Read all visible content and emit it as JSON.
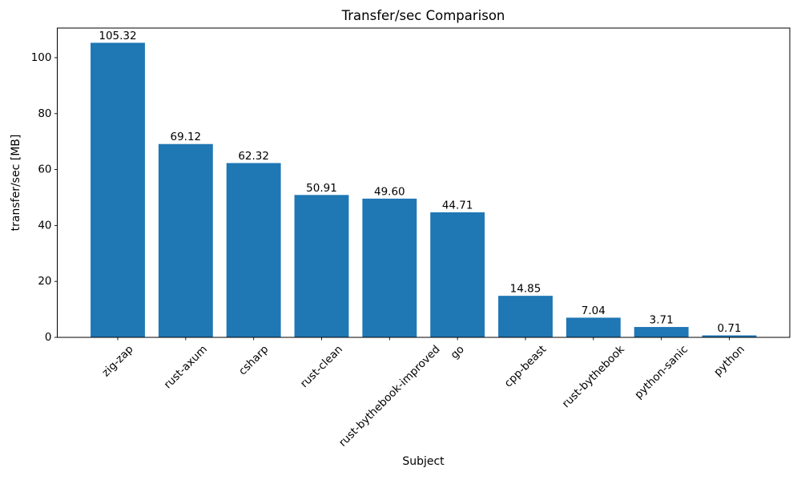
{
  "chart_data": {
    "type": "bar",
    "title": "Transfer/sec Comparison",
    "xlabel": "Subject",
    "ylabel": "transfer/sec [MB]",
    "categories": [
      "zig-zap",
      "rust-axum",
      "csharp",
      "rust-clean",
      "rust-bythebook-improved",
      "go",
      "cpp-beast",
      "rust-bythebook",
      "python-sanic",
      "python"
    ],
    "values": [
      105.32,
      69.12,
      62.32,
      50.91,
      49.6,
      44.71,
      14.85,
      7.04,
      3.71,
      0.71
    ],
    "bar_labels": [
      "105.32",
      "69.12",
      "62.32",
      "50.91",
      "49.60",
      "44.71",
      "14.85",
      "7.04",
      "3.71",
      "0.71"
    ],
    "bar_color": "#1f77b4",
    "axis_color": "#000000",
    "background_color": "#ffffff",
    "yticks": [
      0,
      20,
      40,
      60,
      80,
      100
    ],
    "ylim": [
      0,
      110.59
    ],
    "xtick_rotation_deg": 45,
    "grid": false,
    "legend": "none"
  }
}
